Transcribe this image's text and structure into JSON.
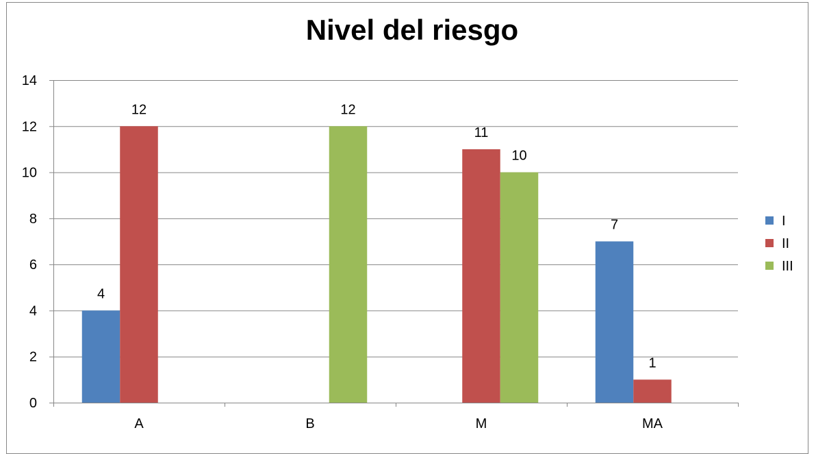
{
  "chart_data": {
    "type": "bar",
    "title": "Nivel del riesgo",
    "xlabel": "",
    "ylabel": "",
    "categories": [
      "A",
      "B",
      "M",
      "MA"
    ],
    "series": [
      {
        "name": "I",
        "color": "#4F81BD",
        "values": [
          4,
          null,
          null,
          7
        ]
      },
      {
        "name": "II",
        "color": "#C0504D",
        "values": [
          12,
          null,
          11,
          1
        ]
      },
      {
        "name": "III",
        "color": "#9BBB59",
        "values": [
          null,
          12,
          10,
          null
        ]
      }
    ],
    "ylim": [
      0,
      14
    ],
    "yticks": [
      "0",
      "2",
      "4",
      "6",
      "8",
      "10",
      "12",
      "14"
    ],
    "grid": true,
    "legend_position": "right",
    "data_labels": true
  }
}
